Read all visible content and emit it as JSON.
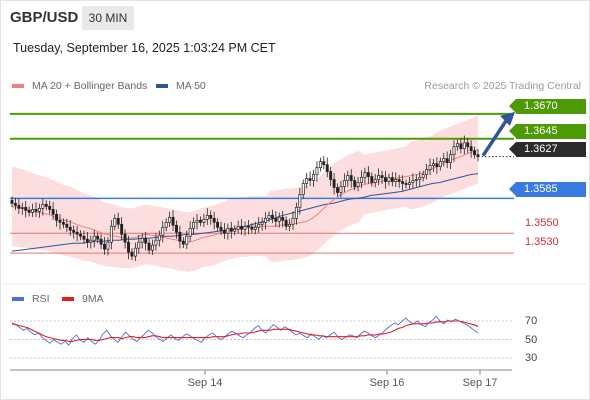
{
  "header": {
    "symbol": "GBP/USD",
    "timeframe": "30 MIN"
  },
  "datetime": "Tuesday, September 16, 2025 1:03:24 PM CET",
  "legend": {
    "items": [
      {
        "label": "MA 20 + Bollinger Bands",
        "color": "#f08080"
      },
      {
        "label": "MA 50",
        "color": "#2f5597"
      }
    ],
    "credit": "Research © 2025 Trading Central"
  },
  "rsi_legend": {
    "items": [
      {
        "label": "RSI",
        "color": "#4a72d8"
      },
      {
        "label": "9MA",
        "color": "#e02020"
      }
    ]
  },
  "chart_data": [
    {
      "type": "candlestick",
      "title": "GBP/USD 30 MIN",
      "x_ticks": [
        "Sep 14",
        "Sep 16",
        "Sep 17"
      ],
      "ylim": [
        1.3505,
        1.369
      ],
      "price_levels": [
        {
          "label": "1.3670",
          "value": 1.367,
          "style": "resistance",
          "color": "#4e9a06"
        },
        {
          "label": "1.3645",
          "value": 1.3645,
          "style": "resistance",
          "color": "#4e9a06"
        },
        {
          "label": "1.3627",
          "value": 1.3627,
          "style": "last-price",
          "color": "#2b2b2b"
        },
        {
          "label": "1.3585",
          "value": 1.3585,
          "style": "pivot",
          "color": "#3a7be0"
        },
        {
          "label": "1.3550",
          "value": 1.355,
          "style": "support",
          "color": "#d32f2f"
        },
        {
          "label": "1.3530",
          "value": 1.353,
          "style": "support",
          "color": "#d32f2f"
        }
      ],
      "closes": [
        1.358,
        1.3578,
        1.3575,
        1.3576,
        1.3573,
        1.3571,
        1.3574,
        1.3572,
        1.3575,
        1.3579,
        1.3577,
        1.3574,
        1.3569,
        1.3563,
        1.3561,
        1.3559,
        1.3556,
        1.3553,
        1.3551,
        1.3549,
        1.3547,
        1.3544,
        1.3541,
        1.3543,
        1.3547,
        1.3544,
        1.3539,
        1.3534,
        1.3541,
        1.3557,
        1.3565,
        1.3559,
        1.3549,
        1.3541,
        1.3531,
        1.3527,
        1.3535,
        1.3541,
        1.3545,
        1.354,
        1.3533,
        1.3538,
        1.3543,
        1.3548,
        1.3556,
        1.3561,
        1.3566,
        1.3558,
        1.3551,
        1.3542,
        1.3539,
        1.3547,
        1.3555,
        1.3561,
        1.3563,
        1.3561,
        1.3564,
        1.3568,
        1.3565,
        1.3561,
        1.3556,
        1.3553,
        1.355,
        1.3555,
        1.3552,
        1.3554,
        1.3557,
        1.3554,
        1.3557,
        1.3556,
        1.3554,
        1.3556,
        1.3559,
        1.3561,
        1.3565,
        1.3568,
        1.3565,
        1.3562,
        1.3566,
        1.3563,
        1.3557,
        1.3559,
        1.3565,
        1.3576,
        1.3589,
        1.36,
        1.3605,
        1.3603,
        1.3609,
        1.3616,
        1.3622,
        1.3619,
        1.3612,
        1.3604,
        1.3596,
        1.3591,
        1.3597,
        1.3603,
        1.3608,
        1.3603,
        1.3597,
        1.3601,
        1.3606,
        1.3611,
        1.3607,
        1.3601,
        1.3604,
        1.3608,
        1.3606,
        1.3602,
        1.3606,
        1.3602,
        1.3604,
        1.3602,
        1.36,
        1.3599,
        1.3601,
        1.3603,
        1.3604,
        1.3606,
        1.3609,
        1.3614,
        1.3618,
        1.362,
        1.3617,
        1.3622,
        1.3625,
        1.3621,
        1.3629,
        1.3637,
        1.364,
        1.3635,
        1.3641,
        1.3637,
        1.3633,
        1.3629,
        1.3627
      ],
      "series": [
        {
          "name": "MA 20 + Bollinger Bands",
          "color": "#f08080",
          "values": [
            1.3577,
            1.3576,
            1.3575,
            1.3574,
            1.3572,
            1.3571,
            1.357,
            1.3569,
            1.3567,
            1.3565,
            1.3563,
            1.3562,
            1.356,
            1.3558,
            1.3556,
            1.3555,
            1.3553,
            1.3551,
            1.3549,
            1.3548,
            1.3547,
            1.3546,
            1.3545,
            1.3545,
            1.3546,
            1.3548,
            1.3549,
            1.3548,
            1.3547,
            1.3546,
            1.3545,
            1.3544,
            1.3543,
            1.3542,
            1.3541,
            1.3542,
            1.3544,
            1.3546,
            1.3547,
            1.3548,
            1.355,
            1.3552,
            1.3554,
            1.3555,
            1.3556,
            1.3556,
            1.3557,
            1.3557,
            1.3557,
            1.3557,
            1.3557,
            1.3557,
            1.3558,
            1.3559,
            1.3559,
            1.356,
            1.3561,
            1.3562,
            1.3565,
            1.3569,
            1.3574,
            1.3579,
            1.3583,
            1.3587,
            1.359,
            1.3593,
            1.3595,
            1.3597,
            1.3599,
            1.36,
            1.3601,
            1.3602,
            1.3603,
            1.3604,
            1.3605,
            1.3606,
            1.3607,
            1.3608,
            1.3609,
            1.361,
            1.3612,
            1.3614,
            1.3617,
            1.362,
            1.3622,
            1.3624,
            1.3626,
            1.3628,
            1.363,
            1.3632,
            1.3634
          ]
        },
        {
          "name": "MA 50",
          "color": "#2f5597",
          "values": [
            1.3532,
            1.3533,
            1.3534,
            1.3535,
            1.3536,
            1.3537,
            1.3538,
            1.3539,
            1.354,
            1.354,
            1.3541,
            1.3542,
            1.3542,
            1.3543,
            1.3543,
            1.3544,
            1.3544,
            1.3545,
            1.3545,
            1.3546,
            1.3547,
            1.3547,
            1.3548,
            1.3549,
            1.3549,
            1.355,
            1.3551,
            1.3552,
            1.3553,
            1.3554,
            1.3556,
            1.3558,
            1.356,
            1.3562,
            1.3564,
            1.3567,
            1.3569,
            1.3571,
            1.3573,
            1.3575,
            1.3577,
            1.3579,
            1.358,
            1.3582,
            1.3584,
            1.3585,
            1.3586,
            1.3588,
            1.3589,
            1.359,
            1.3591,
            1.3592,
            1.3594,
            1.3596,
            1.3598,
            1.36,
            1.3601,
            1.3603,
            1.3605,
            1.3607,
            1.3609,
            1.361
          ]
        }
      ]
    },
    {
      "type": "line",
      "title": "RSI",
      "y_ticks": [
        "70",
        "50",
        "30"
      ],
      "ylim": [
        25,
        80
      ],
      "series": [
        {
          "name": "RSI",
          "color": "#4a72d8",
          "values": [
            68,
            66,
            63,
            60,
            62,
            58,
            55,
            57,
            52,
            49,
            46,
            50,
            47,
            45,
            48,
            44,
            51,
            55,
            49,
            47,
            52,
            48,
            45,
            49,
            56,
            60,
            54,
            50,
            47,
            53,
            58,
            54,
            50,
            48,
            52,
            56,
            60,
            57,
            53,
            50,
            48,
            52,
            55,
            51,
            49,
            53,
            56,
            54,
            51,
            49,
            47,
            52,
            55,
            57,
            53,
            50,
            52,
            56,
            59,
            57,
            54,
            52,
            55,
            58,
            62,
            65,
            60,
            57,
            62,
            66,
            63,
            60,
            64,
            61,
            58,
            55,
            57,
            54,
            52,
            56,
            53,
            50,
            54,
            52,
            55,
            58,
            53,
            50,
            52,
            55,
            54,
            52,
            56,
            59,
            57,
            54,
            52,
            55,
            58,
            62,
            65,
            68,
            66,
            70,
            73,
            69,
            67,
            70,
            66,
            64,
            68,
            71,
            75,
            70,
            67,
            71,
            69,
            72,
            70,
            68,
            66,
            63,
            60,
            57
          ]
        },
        {
          "name": "9MA",
          "color": "#e02020",
          "values": [
            67,
            66,
            65,
            64,
            63,
            61,
            59,
            57,
            55,
            53,
            52,
            51,
            50,
            49,
            49,
            48,
            48,
            49,
            50,
            50,
            50,
            50,
            49,
            49,
            50,
            51,
            52,
            52,
            52,
            51,
            52,
            53,
            53,
            52,
            52,
            52,
            53,
            54,
            54,
            53,
            52,
            52,
            52,
            52,
            52,
            52,
            52,
            52,
            52,
            52,
            52,
            52,
            52,
            53,
            53,
            53,
            53,
            54,
            55,
            56,
            56,
            57,
            57,
            57,
            58,
            59,
            60,
            60,
            60,
            61,
            61,
            61,
            61,
            61,
            60,
            59,
            58,
            57,
            56,
            55,
            55,
            54,
            54,
            53,
            53,
            53,
            53,
            53,
            53,
            53,
            53,
            53,
            54,
            54,
            55,
            55,
            55,
            56,
            56,
            57,
            58,
            60,
            62,
            63,
            65,
            66,
            67,
            67,
            67,
            67,
            68,
            68,
            69,
            69,
            69,
            70,
            70,
            70,
            70,
            69,
            68,
            67,
            66,
            64
          ]
        }
      ]
    }
  ]
}
